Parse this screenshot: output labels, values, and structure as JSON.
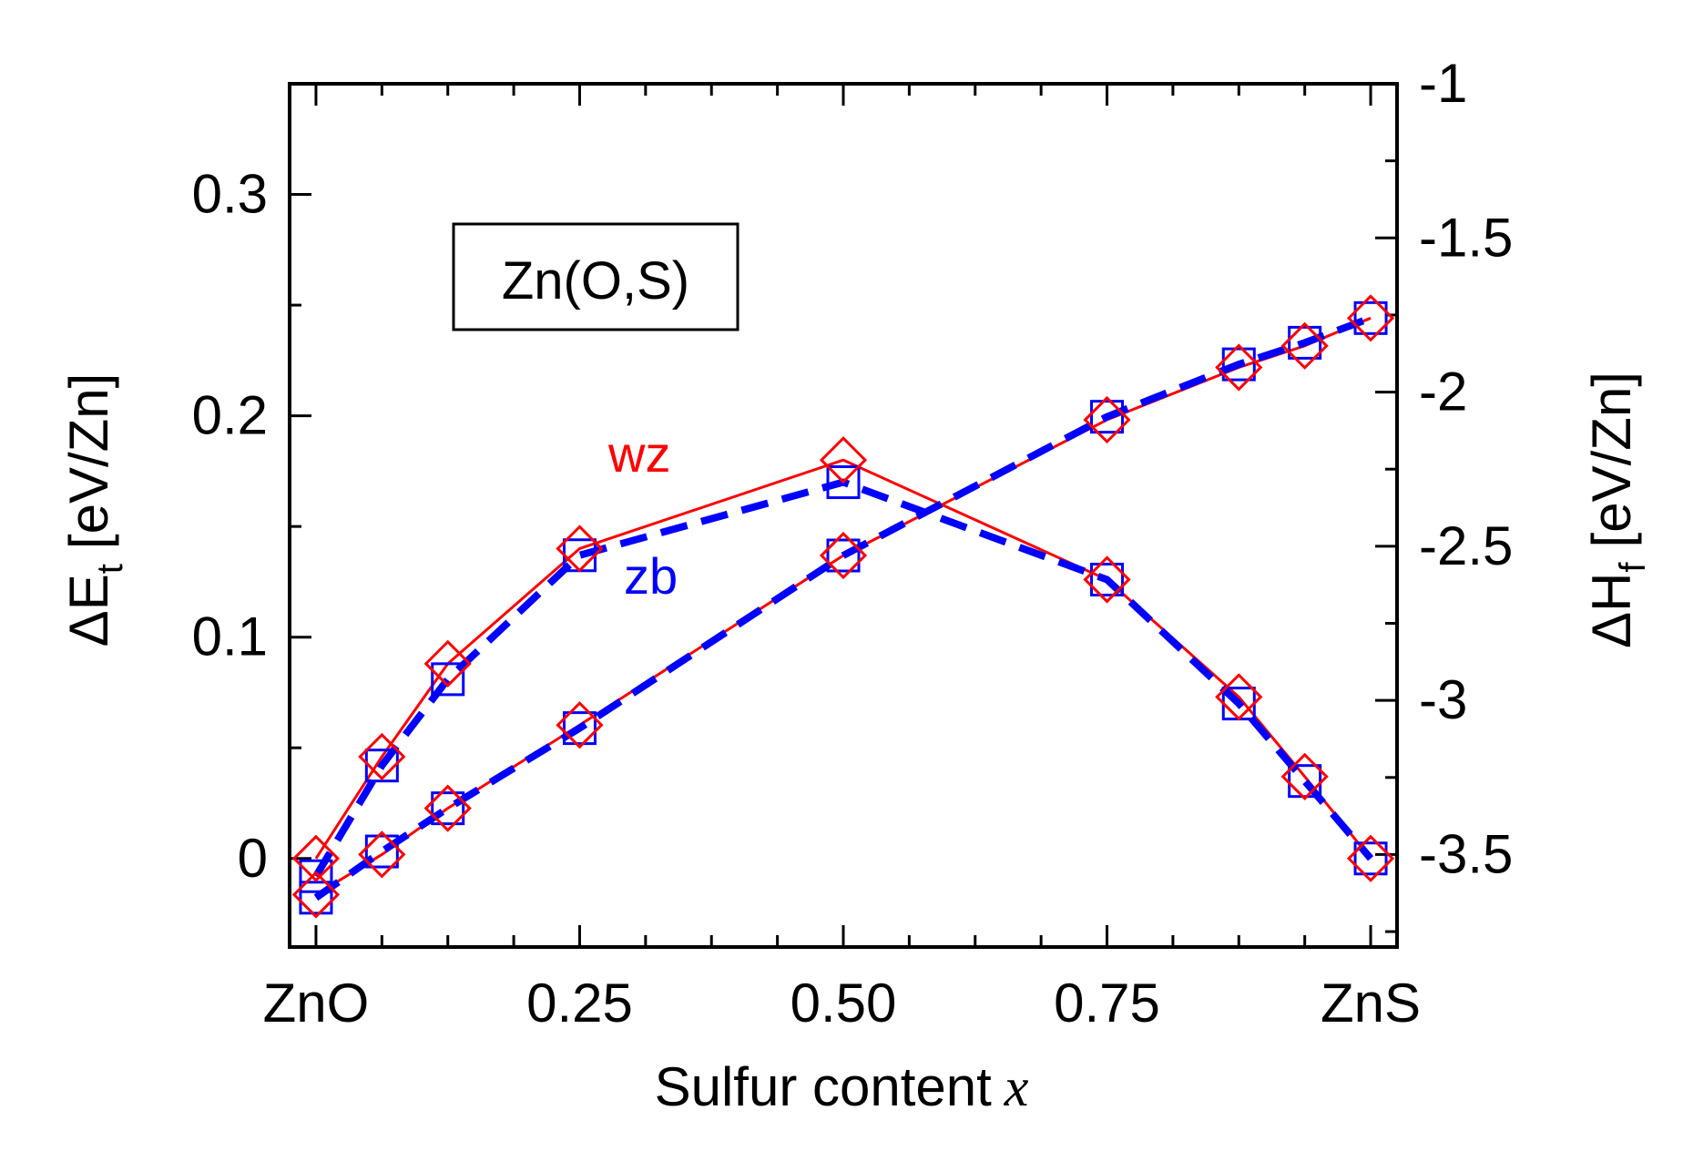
{
  "chart_data": {
    "type": "line",
    "title": "",
    "box_label": "Zn(O,S)",
    "xlabel": "Sulfur content",
    "xlabel_var": "x",
    "ylabel_left": "ΔE",
    "ylabel_left_sub": "t",
    "ylabel_left_unit": "[eV/Zn]",
    "ylabel_right": "ΔH",
    "ylabel_right_sub": "f",
    "ylabel_right_unit": "[eV/Zn]",
    "xlim": [
      -0.025,
      1.025
    ],
    "ylim_left": [
      -0.04,
      0.35
    ],
    "ylim_right": [
      -3.8,
      -1.0
    ],
    "x_ticks": [
      {
        "value": 0,
        "label": "ZnO"
      },
      {
        "value": 0.25,
        "label": "0.25"
      },
      {
        "value": 0.5,
        "label": "0.50"
      },
      {
        "value": 0.75,
        "label": "0.75"
      },
      {
        "value": 1,
        "label": "ZnS"
      }
    ],
    "y_left_ticks": [
      {
        "value": 0,
        "label": "0"
      },
      {
        "value": 0.1,
        "label": "0.1"
      },
      {
        "value": 0.2,
        "label": "0.2"
      },
      {
        "value": 0.3,
        "label": "0.3"
      }
    ],
    "y_right_ticks": [
      {
        "value": -3.5,
        "label": "-3.5"
      },
      {
        "value": -3,
        "label": "-3"
      },
      {
        "value": -2.5,
        "label": "-2.5"
      },
      {
        "value": -2,
        "label": "-2"
      },
      {
        "value": -1.5,
        "label": "-1.5"
      },
      {
        "value": -1,
        "label": "-1"
      }
    ],
    "series": [
      {
        "name": "wz ΔE_t",
        "axis": "left",
        "color": "#ff0000",
        "marker": "diamond",
        "line": "solid",
        "x": [
          0,
          0.0625,
          0.125,
          0.25,
          0.5,
          0.75,
          0.875,
          0.9375,
          1
        ],
        "y": [
          0.0,
          0.046,
          0.088,
          0.14,
          0.18,
          0.126,
          0.073,
          0.037,
          0.0
        ]
      },
      {
        "name": "zb ΔE_t",
        "axis": "left",
        "color": "#0000ff",
        "marker": "square",
        "line": "dashed",
        "x": [
          0,
          0.0625,
          0.125,
          0.25,
          0.5,
          0.75,
          0.875,
          0.9375,
          1
        ],
        "y": [
          -0.008,
          0.042,
          0.081,
          0.137,
          0.17,
          0.126,
          0.07,
          0.035,
          0.0
        ]
      },
      {
        "name": "wz ΔH_f",
        "axis": "right",
        "color": "#ff0000",
        "marker": "diamond",
        "line": "solid",
        "x": [
          0,
          0.0625,
          0.125,
          0.25,
          0.5,
          0.75,
          0.875,
          0.9375,
          1
        ],
        "y": [
          -3.63,
          -3.5,
          -3.35,
          -3.08,
          -2.53,
          -2.09,
          -1.92,
          -1.85,
          -1.76
        ]
      },
      {
        "name": "zb ΔH_f",
        "axis": "right",
        "color": "#0000ff",
        "marker": "square",
        "line": "dashed",
        "x": [
          0,
          0.0625,
          0.125,
          0.25,
          0.5,
          0.75,
          0.875,
          0.9375,
          1
        ],
        "y": [
          -3.64,
          -3.49,
          -3.35,
          -3.09,
          -2.53,
          -2.08,
          -1.91,
          -1.84,
          -1.76
        ]
      }
    ],
    "annotations": [
      {
        "text": "wz",
        "color": "#ff0000"
      },
      {
        "text": "zb",
        "color": "#0000ff"
      }
    ]
  }
}
